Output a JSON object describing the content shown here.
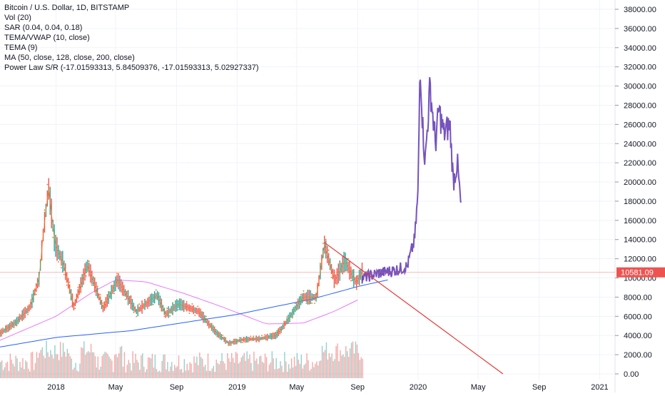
{
  "legend": {
    "title": "Bitcoin / U.S. Dollar, 1D, BITSTAMP",
    "lines": [
      "Vol (20)",
      "SAR (0.04, 0.04, 0.18)",
      "TEMA/VWAP (10, close)",
      "TEMA (9)",
      "MA (50, close, 128, close, 200, close)",
      "Power Law S/R (-17.01593313, 5.84509376, -17.01593313, 5.02927337)"
    ]
  },
  "last_price": {
    "value": 10581.09,
    "label": "10581.09",
    "color": "#ef5350"
  },
  "colors": {
    "up": "#26a69a",
    "down": "#ef5350",
    "sar": "#ff6d00",
    "ma50": "#00bcd4",
    "ma128": "#e040fb",
    "ma200": "#9c27b0",
    "power_law": "#2962ff",
    "projection": "#5e35b1",
    "trendline": "#e53935",
    "grid": "#f0f3fa"
  },
  "chart_data": {
    "type": "line",
    "title": "Bitcoin / U.S. Dollar, 1D, BITSTAMP",
    "ylim": [
      0,
      38000
    ],
    "y_ticks": [
      0,
      2000,
      4000,
      6000,
      8000,
      10000,
      12000,
      14000,
      16000,
      18000,
      20000,
      22000,
      24000,
      26000,
      28000,
      30000,
      32000,
      34000,
      36000,
      38000
    ],
    "y_tick_labels": [
      "0.00",
      "2000.00",
      "4000.00",
      "6000.00",
      "8000.00",
      "10000.00",
      "12000.00",
      "14000.00",
      "16000.00",
      "18000.00",
      "20000.00",
      "22000.00",
      "24000.00",
      "26000.00",
      "28000.00",
      "30000.00",
      "32000.00",
      "34000.00",
      "36000.00",
      "38000.00"
    ],
    "x_ticks": [
      "2018-01-01",
      "2018-05-01",
      "2018-09-01",
      "2019-01-01",
      "2019-05-01",
      "2019-09-01",
      "2020-01-01",
      "2020-05-01",
      "2020-09-01",
      "2021-01-01"
    ],
    "x_tick_labels": [
      "2018",
      "May",
      "Sep",
      "2019",
      "May",
      "Sep",
      "2020",
      "May",
      "Sep",
      "2021"
    ],
    "xlim": [
      "2017-09-10",
      "2021-02-01"
    ],
    "series": [
      {
        "name": "price",
        "x": [
          "2017-09-10",
          "2017-10-15",
          "2017-11-10",
          "2017-11-28",
          "2017-12-07",
          "2017-12-17",
          "2017-12-30",
          "2018-01-16",
          "2018-02-06",
          "2018-03-05",
          "2018-04-06",
          "2018-05-05",
          "2018-06-12",
          "2018-07-24",
          "2018-08-10",
          "2018-09-05",
          "2018-10-15",
          "2018-11-20",
          "2018-12-15",
          "2019-01-15",
          "2019-02-15",
          "2019-03-20",
          "2019-04-05",
          "2019-05-14",
          "2019-06-10",
          "2019-06-26",
          "2019-07-17",
          "2019-08-06",
          "2019-08-29",
          "2019-09-10"
        ],
        "y": [
          4200,
          5500,
          7000,
          10000,
          15000,
          19400,
          13500,
          11500,
          7000,
          11400,
          6800,
          9800,
          6500,
          8200,
          6200,
          7300,
          6500,
          4300,
          3200,
          3600,
          3650,
          4000,
          5000,
          8000,
          8000,
          13500,
          9700,
          11800,
          9500,
          10581
        ]
      },
      {
        "name": "projection",
        "x": [
          "2019-09-10",
          "2019-10-15",
          "2019-11-15",
          "2019-12-10",
          "2019-12-25",
          "2020-01-01",
          "2020-01-05",
          "2020-01-10",
          "2020-01-15",
          "2020-01-25",
          "2020-02-05",
          "2020-02-12",
          "2020-02-22",
          "2020-03-05",
          "2020-03-12",
          "2020-03-20",
          "2020-03-28"
        ],
        "y": [
          10000,
          10500,
          10800,
          11200,
          14000,
          19000,
          33000,
          26000,
          22000,
          30000,
          24000,
          27500,
          25000,
          26000,
          20000,
          22000,
          17000
        ]
      },
      {
        "name": "ma200",
        "x": [
          "2017-09-10",
          "2018-01-01",
          "2018-03-15",
          "2018-05-01",
          "2018-07-01",
          "2018-09-15",
          "2018-12-01",
          "2019-03-01",
          "2019-05-15",
          "2019-07-15",
          "2019-09-01"
        ],
        "y": [
          3500,
          6000,
          8500,
          9800,
          9600,
          8400,
          7000,
          5200,
          5300,
          6500,
          7700
        ]
      },
      {
        "name": "power_law",
        "x": [
          "2017-09-10",
          "2018-01-01",
          "2018-06-01",
          "2019-01-01",
          "2019-06-01",
          "2019-09-01",
          "2019-11-01"
        ],
        "y": [
          2800,
          3800,
          4500,
          6200,
          7800,
          9100,
          9800
        ]
      },
      {
        "name": "trendline",
        "x": [
          "2019-06-26",
          "2020-06-20"
        ],
        "y": [
          13700,
          0
        ]
      }
    ]
  }
}
